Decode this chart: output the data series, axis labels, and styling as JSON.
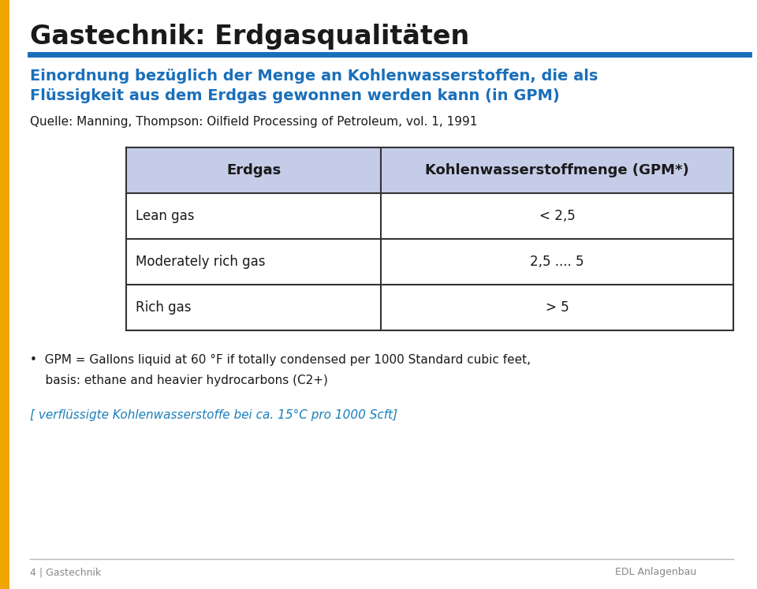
{
  "title": "Gastechnik: Erdgasqualitäten",
  "title_color": "#1a1a1a",
  "blue_line_color": "#1a6fba",
  "orange_left_bar_color": "#F0A500",
  "subtitle_line1": "Einordnung bezüglich der Menge an Kohlenwasserstoffen, die als",
  "subtitle_line2": "Flüssigkeit aus dem Erdgas gewonnen werden kann (in GPM)",
  "subtitle_color": "#1a6fba",
  "source_text": "Quelle: Manning, Thompson: Oilfield Processing of Petroleum, vol. 1, 1991",
  "source_color": "#1a1a1a",
  "table_header_col1": "Erdgas",
  "table_header_col2": "Kohlenwasserstoffmenge (GPM*)",
  "table_header_bg": "#c5cce8",
  "table_rows": [
    [
      "Lean gas",
      "< 2,5"
    ],
    [
      "Moderately rich gas",
      "2,5 .... 5"
    ],
    [
      "Rich gas",
      "> 5"
    ]
  ],
  "table_row_bg": "#ffffff",
  "table_border_color": "#333333",
  "footnote_line1": "•  GPM = Gallons liquid at 60 °F if totally condensed per 1000 Standard cubic feet,",
  "footnote_line2": "    basis: ethane and heavier hydrocarbons (C2+)",
  "footnote_color": "#1a1a1a",
  "italic_note": "[ verflüssigte Kohlenwasserstoffe bei ca. 15°C pro 1000 Scft]",
  "italic_note_color": "#1a7fba",
  "footer_left": "4 | Gastechnik",
  "footer_right": "EDL Anlagenbau",
  "footer_color": "#888888",
  "bg_color": "#ffffff"
}
